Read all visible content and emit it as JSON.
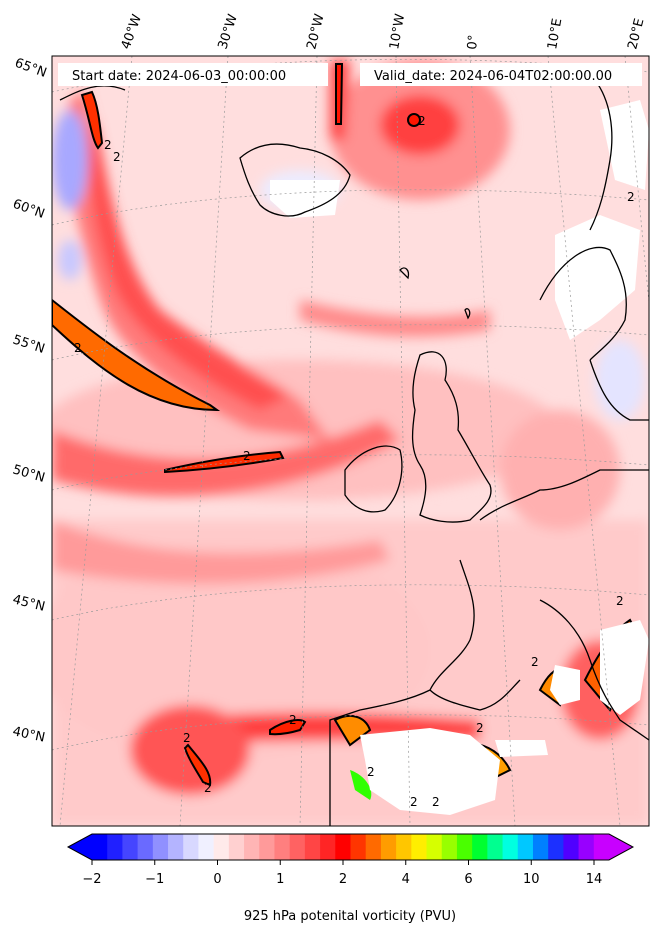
{
  "header": {
    "start_date": "Start date: 2024-06-03_00:00:00",
    "valid_date": "Valid_date: 2024-06-04T02:00:00.00"
  },
  "lon_labels": [
    "40°W",
    "30°W",
    "20°W",
    "10°W",
    "0°",
    "10°E",
    "20°E"
  ],
  "lat_labels": [
    "65°N",
    "60°N",
    "55°N",
    "50°N",
    "45°N",
    "40°N"
  ],
  "contour_labels": [
    "2",
    "2",
    "2",
    "2",
    "2",
    "2",
    "2",
    "2",
    "2",
    "2",
    "2",
    "2",
    "2",
    "2",
    "2"
  ],
  "colorbar": {
    "label": "925 hPa potenital vorticity (PVU)",
    "ticks": [
      "−2",
      "−1",
      "0",
      "1",
      "2",
      "4",
      "6",
      "10",
      "14"
    ],
    "colors": [
      "#0000ff",
      "#2020ff",
      "#4545ff",
      "#6a6aff",
      "#9090ff",
      "#b4b4ff",
      "#d8d8ff",
      "#f0f0ff",
      "#ffeaea",
      "#ffd0d0",
      "#ffb5b5",
      "#ff9a9a",
      "#ff7f7f",
      "#ff6262",
      "#ff4545",
      "#ff2525",
      "#ff0000",
      "#ff3500",
      "#ff6a00",
      "#ff9c00",
      "#ffc600",
      "#ffee00",
      "#d6ff00",
      "#98ff00",
      "#4aff00",
      "#00ff30",
      "#00ff90",
      "#00ffe0",
      "#00c8ff",
      "#0080ff",
      "#1c30ff",
      "#5000ff",
      "#9800ff",
      "#c800ff"
    ],
    "under_color": "#0000ff",
    "over_color": "#c800ff"
  }
}
